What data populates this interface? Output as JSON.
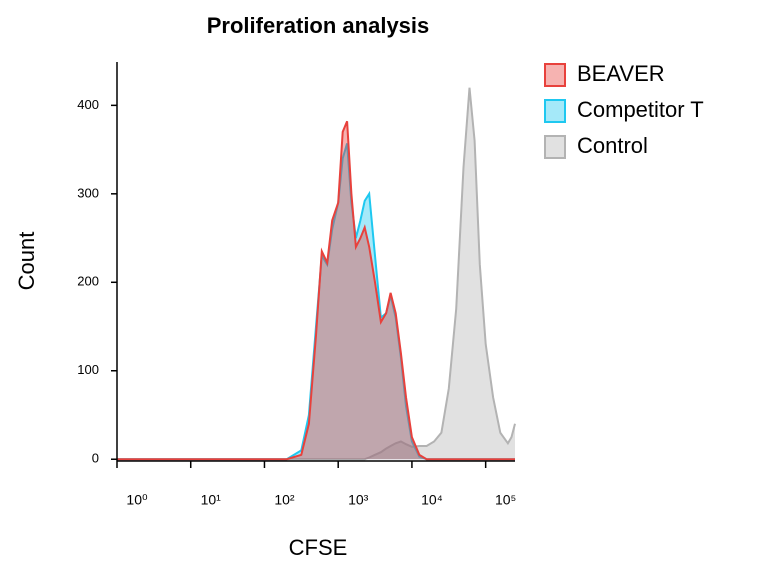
{
  "chart_data": {
    "type": "histogram-overlay",
    "title": "Proliferation analysis",
    "xlabel": "CFSE",
    "ylabel": "Count",
    "x": [
      1,
      100,
      200,
      316,
      400,
      500,
      600,
      710,
      830,
      1000,
      1150,
      1320,
      1510,
      1740,
      2000,
      2290,
      2630,
      3160,
      3800,
      4470,
      5130,
      6030,
      7080,
      8320,
      10000,
      12600,
      15800,
      20000,
      25100,
      31600,
      39800,
      50100,
      60300,
      70800,
      83200,
      100000,
      126000,
      158000,
      200000,
      224000,
      250000
    ],
    "series": [
      {
        "name": "Control",
        "color": "#b3b3b3",
        "values": [
          0,
          0,
          0,
          0,
          0,
          0,
          0,
          0,
          0,
          0,
          0,
          0,
          0,
          0,
          0,
          0,
          2,
          5,
          8,
          12,
          15,
          18,
          20,
          17,
          14,
          15,
          15,
          20,
          30,
          80,
          170,
          330,
          420,
          360,
          220,
          130,
          70,
          30,
          18,
          25,
          40
        ]
      },
      {
        "name": "Competitor T",
        "color": "#1ec8f0",
        "values": [
          0,
          0,
          0,
          10,
          50,
          150,
          230,
          220,
          260,
          290,
          340,
          357,
          290,
          250,
          270,
          292,
          300,
          230,
          160,
          165,
          185,
          160,
          115,
          60,
          20,
          3,
          0,
          0,
          0,
          0,
          0,
          0,
          0,
          0,
          0,
          0,
          0,
          0,
          0,
          0,
          0
        ]
      },
      {
        "name": "BEAVER",
        "color": "#e8413c",
        "values": [
          0,
          0,
          0,
          5,
          40,
          140,
          235,
          222,
          270,
          290,
          370,
          382,
          300,
          240,
          250,
          262,
          240,
          200,
          155,
          165,
          188,
          165,
          120,
          70,
          25,
          5,
          0,
          0,
          0,
          0,
          0,
          0,
          0,
          0,
          0,
          0,
          0,
          0,
          0,
          0,
          0
        ]
      }
    ],
    "legend_order": [
      "BEAVER",
      "Competitor T",
      "Control"
    ],
    "xscale": "log",
    "xlim": [
      1,
      250000
    ],
    "xticks": [
      {
        "value": 1,
        "label": "10⁰"
      },
      {
        "value": 10,
        "label": "10¹"
      },
      {
        "value": 100,
        "label": "10²"
      },
      {
        "value": 1000,
        "label": "10³"
      },
      {
        "value": 10000,
        "label": "10⁴"
      },
      {
        "value": 100000,
        "label": "10⁵"
      }
    ],
    "ylim": [
      -2,
      449
    ],
    "yticks": [
      0,
      100,
      200,
      300,
      400
    ],
    "legend": "right"
  }
}
